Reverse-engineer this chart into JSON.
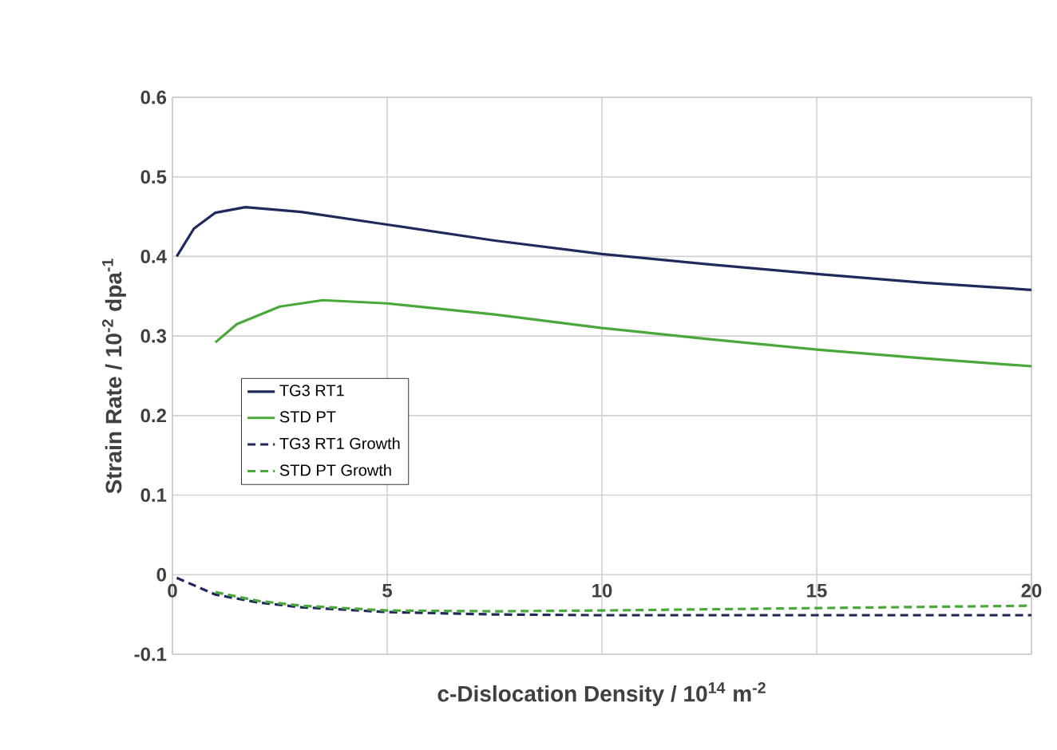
{
  "chart_data": {
    "type": "line",
    "xlabel": "c-Dislocation Density / 10$^{14}$ m$^{-2}$",
    "ylabel": "Strain Rate / 10$^{-2}$ dpa$^{-1}$",
    "xlim": [
      0,
      20
    ],
    "xticks": [
      0,
      5,
      10,
      15,
      20
    ],
    "ylim": [
      -0.1,
      0.6
    ],
    "yticks": [
      -0.1,
      0,
      0.1,
      0.2,
      0.3,
      0.4,
      0.5,
      0.6
    ],
    "grid": true,
    "legend": "left",
    "marker": "none",
    "series": [
      {
        "name": "TG3 RT1",
        "color": "#1f2a5c",
        "line_style": "solid",
        "x": [
          0.1,
          0.5,
          1,
          1.7,
          3,
          5,
          7.5,
          10,
          12.5,
          15,
          17.5,
          20
        ],
        "values": [
          0.4,
          0.435,
          0.455,
          0.462,
          0.456,
          0.44,
          0.42,
          0.403,
          0.39,
          0.378,
          0.367,
          0.358
        ]
      },
      {
        "name": "STD PT",
        "color": "#4aa83a",
        "line_style": "solid",
        "x": [
          1,
          1.5,
          2.5,
          3.5,
          5,
          7.5,
          10,
          12.5,
          15,
          17.5,
          20
        ],
        "values": [
          0.292,
          0.315,
          0.337,
          0.345,
          0.341,
          0.327,
          0.31,
          0.296,
          0.283,
          0.272,
          0.262
        ]
      },
      {
        "name": "TG3 RT1 Growth",
        "color": "#1f2a5c",
        "line_style": "dashed",
        "x": [
          0.1,
          1,
          2,
          3,
          5,
          7.5,
          10,
          15,
          20
        ],
        "values": [
          -0.004,
          -0.025,
          -0.035,
          -0.041,
          -0.047,
          -0.05,
          -0.051,
          -0.051,
          -0.051
        ]
      },
      {
        "name": "STD PT Growth",
        "color": "#4aa83a",
        "line_style": "dashed",
        "x": [
          1,
          2,
          3,
          5,
          7.5,
          10,
          15,
          20
        ],
        "values": [
          -0.022,
          -0.033,
          -0.039,
          -0.045,
          -0.046,
          -0.045,
          -0.042,
          -0.039
        ]
      }
    ]
  }
}
